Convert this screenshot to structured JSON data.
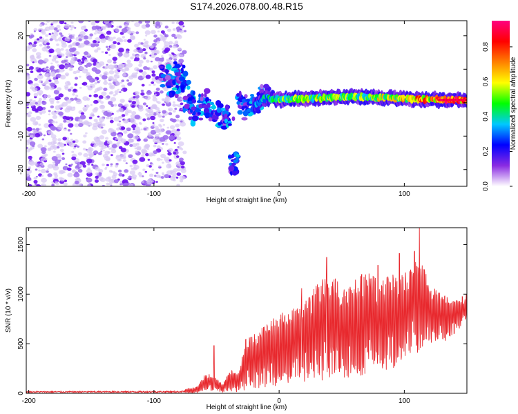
{
  "title": "S174.2026.078.00.48.R15",
  "colors": {
    "snr_line": "#e8282d",
    "scatter_dim": "#d7c8f4",
    "scatter_mid": "#a070ee",
    "scatter_strong": "#6a10f0"
  },
  "chart_data": [
    {
      "type": "heatmap",
      "name": "spectrogram",
      "title": "",
      "xlabel": "Height of straight line (km)",
      "ylabel": "Frequency (Hz)",
      "xlim": [
        -202,
        150
      ],
      "ylim": [
        -25,
        24.5
      ],
      "xticks": [
        -200,
        -100,
        0,
        100
      ],
      "xtick_labels": [
        "-200",
        "-100",
        "0",
        "100"
      ],
      "yticks": [
        -20,
        -10,
        0,
        10,
        20
      ],
      "ytick_labels": [
        "-20",
        "-10",
        "0",
        "10",
        "20"
      ],
      "colorbar": {
        "label": "Normalized spectral amplitude",
        "range": [
          0,
          0.95
        ],
        "ticks": [
          0.0,
          0.2,
          0.4,
          0.6,
          0.8
        ],
        "tick_labels": [
          "0.0",
          "0.2",
          "0.4",
          "0.6",
          "0.8"
        ],
        "colors": [
          "#ffffff",
          "#8a2be2",
          "#0000ff",
          "#00c8ff",
          "#00ff00",
          "#ffff00",
          "#ff8000",
          "#ff0000",
          "#ff0080"
        ]
      },
      "noise_region": {
        "x": [
          -202,
          -75
        ],
        "y": [
          -25,
          24.5
        ]
      },
      "transition_region": [
        {
          "x": -90,
          "y": 8
        },
        {
          "x": -85,
          "y": 5
        },
        {
          "x": -80,
          "y": 9
        },
        {
          "x": -76,
          "y": 6
        },
        {
          "x": -72,
          "y": 0
        },
        {
          "x": -68,
          "y": -2
        },
        {
          "x": -65,
          "y": -4
        },
        {
          "x": -60,
          "y": 1
        },
        {
          "x": -55,
          "y": -2
        },
        {
          "x": -50,
          "y": -4
        },
        {
          "x": -45,
          "y": -3
        },
        {
          "x": -40,
          "y": -5
        },
        {
          "x": -36,
          "y": -18
        },
        {
          "x": -30,
          "y": 0
        },
        {
          "x": -24,
          "y": -2
        },
        {
          "x": -18,
          "y": 0
        },
        {
          "x": -12,
          "y": 2
        }
      ],
      "signal_ridge": [
        {
          "x": -20,
          "y": -1,
          "amp": 0.35
        },
        {
          "x": -10,
          "y": 1.5,
          "amp": 0.45
        },
        {
          "x": 0,
          "y": 1,
          "amp": 0.55
        },
        {
          "x": 20,
          "y": 1.2,
          "amp": 0.6
        },
        {
          "x": 40,
          "y": 1.5,
          "amp": 0.65
        },
        {
          "x": 60,
          "y": 1.8,
          "amp": 0.6
        },
        {
          "x": 80,
          "y": 1.5,
          "amp": 0.65
        },
        {
          "x": 100,
          "y": 1.2,
          "amp": 0.7
        },
        {
          "x": 110,
          "y": 1.0,
          "amp": 0.85
        },
        {
          "x": 120,
          "y": 1.0,
          "amp": 0.8
        },
        {
          "x": 130,
          "y": 0.8,
          "amp": 0.95
        },
        {
          "x": 150,
          "y": 0.8,
          "amp": 0.95
        }
      ]
    },
    {
      "type": "line",
      "name": "snr",
      "title": "",
      "xlabel": "Height of straight line (km)",
      "ylabel": "SNR (10 * v/v)",
      "xlim": [
        -202,
        150
      ],
      "ylim": [
        0,
        1670
      ],
      "xticks": [
        -200,
        -100,
        0,
        100
      ],
      "xtick_labels": [
        "-200",
        "-100",
        "0",
        "100"
      ],
      "yticks": [
        0,
        500,
        1000,
        1500
      ],
      "ytick_labels": [
        "0",
        "500",
        "1000",
        "1500"
      ],
      "series": [
        {
          "name": "SNR",
          "envelope": [
            {
              "x": -202,
              "lo": 0,
              "hi": 20
            },
            {
              "x": -80,
              "lo": 0,
              "hi": 25
            },
            {
              "x": -65,
              "lo": 0,
              "hi": 70
            },
            {
              "x": -60,
              "lo": 30,
              "hi": 180
            },
            {
              "x": -55,
              "lo": 30,
              "hi": 200
            },
            {
              "x": -50,
              "lo": 20,
              "hi": 150
            },
            {
              "x": -45,
              "lo": 10,
              "hi": 100
            },
            {
              "x": -38,
              "lo": 20,
              "hi": 250
            },
            {
              "x": -32,
              "lo": 10,
              "hi": 200
            },
            {
              "x": -27,
              "lo": 30,
              "hi": 550
            },
            {
              "x": -20,
              "lo": 50,
              "hi": 600
            },
            {
              "x": -10,
              "lo": 60,
              "hi": 700
            },
            {
              "x": 0,
              "lo": 80,
              "hi": 800
            },
            {
              "x": 10,
              "lo": 100,
              "hi": 850
            },
            {
              "x": 20,
              "lo": 100,
              "hi": 950
            },
            {
              "x": 30,
              "lo": 100,
              "hi": 1100
            },
            {
              "x": 40,
              "lo": 150,
              "hi": 1250
            },
            {
              "x": 50,
              "lo": 150,
              "hi": 1100
            },
            {
              "x": 60,
              "lo": 150,
              "hi": 1150
            },
            {
              "x": 70,
              "lo": 200,
              "hi": 1250
            },
            {
              "x": 80,
              "lo": 200,
              "hi": 1150
            },
            {
              "x": 90,
              "lo": 250,
              "hi": 1200
            },
            {
              "x": 100,
              "lo": 300,
              "hi": 1200
            },
            {
              "x": 110,
              "lo": 400,
              "hi": 1500
            },
            {
              "x": 120,
              "lo": 500,
              "hi": 1100
            },
            {
              "x": 130,
              "lo": 500,
              "hi": 1000
            },
            {
              "x": 140,
              "lo": 600,
              "hi": 950
            },
            {
              "x": 150,
              "lo": 700,
              "hi": 1000
            }
          ],
          "peaks": [
            {
              "x": -52,
              "y": 480
            },
            {
              "x": 18,
              "y": 1060
            },
            {
              "x": 38,
              "y": 1370
            },
            {
              "x": 79,
              "y": 1290
            },
            {
              "x": 96,
              "y": 1410
            },
            {
              "x": 112,
              "y": 1670
            }
          ]
        }
      ]
    }
  ]
}
